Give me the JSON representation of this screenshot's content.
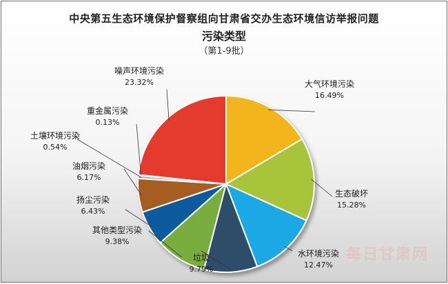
{
  "chart_data": {
    "type": "pie",
    "title": "中央第五生态环境保护督察组向甘肃省交办生态环境信访举报问题",
    "subtitle": "污染类型",
    "note": "（第1-9批）",
    "slices": [
      {
        "label": "大气环境污染",
        "value": 16.49,
        "value_text": "16.49%",
        "color": "#f2b51f"
      },
      {
        "label": "生态破坏",
        "value": 15.28,
        "value_text": "15.28%",
        "color": "#a8c43a"
      },
      {
        "label": "水环境污染",
        "value": 12.47,
        "value_text": "12.47%",
        "color": "#1fa8e4"
      },
      {
        "label": "垃圾",
        "value": 9.79,
        "value_text": "9.79%",
        "color": "#2e4d68"
      },
      {
        "label": "其他类型污染",
        "value": 9.38,
        "value_text": "9.38%",
        "color": "#7aad40"
      },
      {
        "label": "扬尘污染",
        "value": 6.43,
        "value_text": "6.43%",
        "color": "#0c5a9e"
      },
      {
        "label": "油烟污染",
        "value": 6.17,
        "value_text": "6.17%",
        "color": "#a65d22"
      },
      {
        "label": "土壤环境污染",
        "value": 0.54,
        "value_text": "0.54%",
        "color": "#9aa8b5"
      },
      {
        "label": "重金属污染",
        "value": 0.13,
        "value_text": "0.13%",
        "color": "#5a5a5a"
      },
      {
        "label": "噪声环境污染",
        "value": 23.32,
        "value_text": "23.32%",
        "color": "#e53a2d"
      }
    ]
  },
  "watermark": "每日甘肃网"
}
